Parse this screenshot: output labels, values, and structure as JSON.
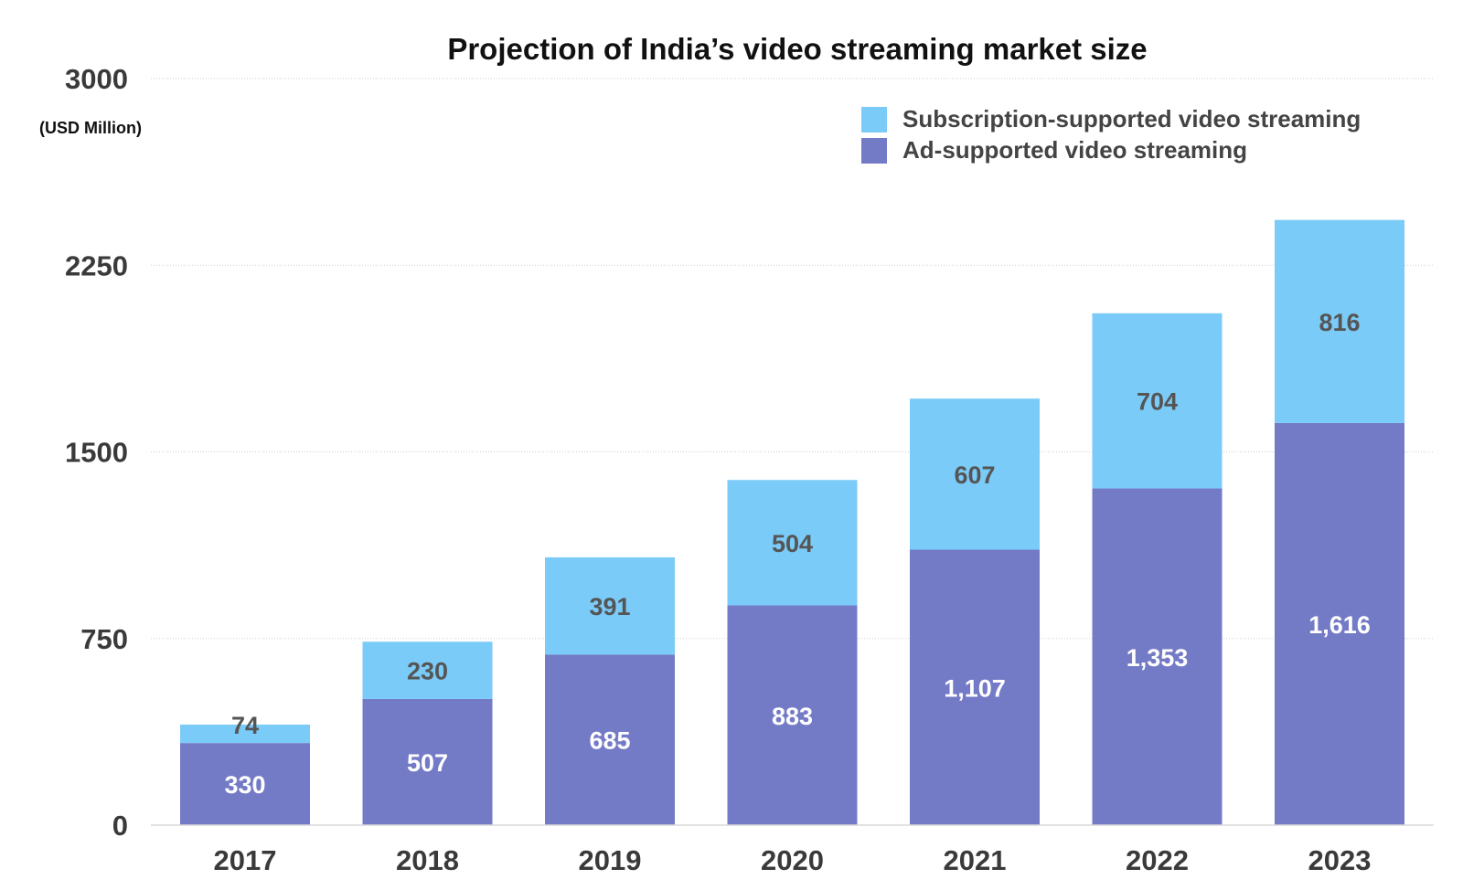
{
  "chart_data": {
    "type": "bar",
    "stacked": true,
    "title": "Projection of India’s video streaming market size",
    "ylabel": "(USD Million)",
    "xlabel": "",
    "ylim": [
      0,
      3000
    ],
    "yticks": [
      0,
      750,
      1500,
      2250,
      3000
    ],
    "grid": true,
    "legend_position": "top-right",
    "categories": [
      "2017",
      "2018",
      "2019",
      "2020",
      "2021",
      "2022",
      "2023"
    ],
    "series": [
      {
        "name": "Ad-supported video streaming",
        "color": "#747bc6",
        "values": [
          330,
          507,
          685,
          883,
          1107,
          1353,
          1616
        ],
        "labels": [
          "330",
          "507",
          "685",
          "883",
          "1,107",
          "1,353",
          "1,616"
        ]
      },
      {
        "name": "Subscription-supported video streaming",
        "color": "#7bcbf8",
        "values": [
          74,
          230,
          391,
          504,
          607,
          704,
          816
        ],
        "labels": [
          "74",
          "230",
          "391",
          "504",
          "607",
          "704",
          "816"
        ]
      }
    ],
    "legend_order": [
      1,
      0
    ]
  }
}
